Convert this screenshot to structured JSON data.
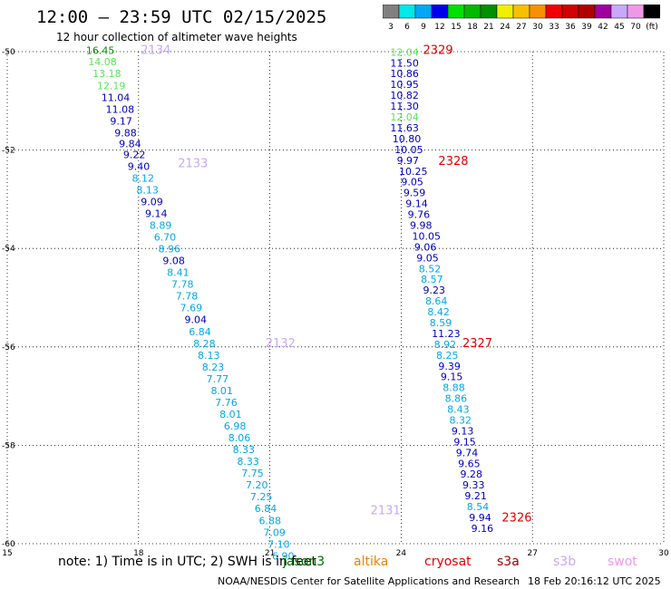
{
  "title": "12:00 — 23:59 UTC 02/15/2025",
  "subtitle": "12 hour collection of altimeter wave heights",
  "colorbar": {
    "colors": [
      "#808080",
      "#00e8e8",
      "#00a8f8",
      "#0000f0",
      "#00e000",
      "#00b800",
      "#009000",
      "#f0f000",
      "#f8c000",
      "#f89000",
      "#f00000",
      "#d00000",
      "#b00000",
      "#a000a0",
      "#c8a8f8",
      "#f098e8",
      "#000000"
    ],
    "labels": [
      "3",
      "6",
      "9",
      "12",
      "15",
      "18",
      "21",
      "24",
      "27",
      "30",
      "33",
      "36",
      "39",
      "42",
      "45",
      "70",
      "(ft)"
    ]
  },
  "note": "note:  1) Time is in UTC;  2) SWH is in feet",
  "satellites": [
    {
      "name": "jason3",
      "color": "#007000"
    },
    {
      "name": "altika",
      "color": "#f08000"
    },
    {
      "name": "cryosat",
      "color": "#e00000"
    },
    {
      "name": "s3a",
      "color": "#a00000"
    },
    {
      "name": "s3b",
      "color": "#c8a8f8"
    },
    {
      "name": "swot",
      "color": "#f098e8"
    }
  ],
  "footer": "NOAA/NESDIS Center for Satellite Applications and Research",
  "footer_time": "18 Feb 20:16:12 UTC 2025",
  "chart_data": {
    "type": "scatter",
    "xlim": [
      15,
      30
    ],
    "ylim": [
      -60,
      -50
    ],
    "xticks": [
      15,
      18,
      21,
      24,
      27,
      30
    ],
    "yticks": [
      -50,
      -52,
      -54,
      -56,
      -58,
      -60
    ],
    "grid": true,
    "tracks": [
      {
        "labels": [
          {
            "text": "2134",
            "x": 18.05,
            "y": -50.05,
            "color": "#c8a8f8"
          },
          {
            "text": "2133",
            "x": 18.9,
            "y": -52.35,
            "color": "#c8a8f8"
          },
          {
            "text": "2132",
            "x": 20.9,
            "y": -56.0,
            "color": "#c8a8f8"
          },
          {
            "text": "2131",
            "x": 23.3,
            "y": -59.4,
            "color": "#c8a8f8"
          }
        ],
        "points": [
          {
            "x": 16.8,
            "y": -50.05,
            "v": "16.45",
            "c": "#009000"
          },
          {
            "x": 16.85,
            "y": -50.28,
            "v": "14.08",
            "c": "#60e060"
          },
          {
            "x": 16.95,
            "y": -50.52,
            "v": "13.18",
            "c": "#60e060"
          },
          {
            "x": 17.05,
            "y": -50.76,
            "v": "12.19",
            "c": "#60e060"
          },
          {
            "x": 17.15,
            "y": -51.0,
            "v": "11.04",
            "c": "#0000c0"
          },
          {
            "x": 17.25,
            "y": -51.24,
            "v": "11.08",
            "c": "#0000c0"
          },
          {
            "x": 17.35,
            "y": -51.48,
            "v": "9.17",
            "c": "#0000c0"
          },
          {
            "x": 17.45,
            "y": -51.72,
            "v": "9.88",
            "c": "#0000c0"
          },
          {
            "x": 17.55,
            "y": -51.94,
            "v": "9.84",
            "c": "#0000c0"
          },
          {
            "x": 17.65,
            "y": -52.16,
            "v": "9.22",
            "c": "#0000c0"
          },
          {
            "x": 17.75,
            "y": -52.4,
            "v": "9.40",
            "c": "#0000c0"
          },
          {
            "x": 17.85,
            "y": -52.64,
            "v": "8.12",
            "c": "#00a8e8"
          },
          {
            "x": 17.95,
            "y": -52.88,
            "v": "8.13",
            "c": "#00a8e8"
          },
          {
            "x": 18.05,
            "y": -53.12,
            "v": "9.09",
            "c": "#0000c0"
          },
          {
            "x": 18.15,
            "y": -53.36,
            "v": "9.14",
            "c": "#0000c0"
          },
          {
            "x": 18.25,
            "y": -53.6,
            "v": "8.89",
            "c": "#00a8e8"
          },
          {
            "x": 18.35,
            "y": -53.84,
            "v": "6.70",
            "c": "#00a8e8"
          },
          {
            "x": 18.45,
            "y": -54.08,
            "v": "8.96",
            "c": "#00a8e8"
          },
          {
            "x": 18.55,
            "y": -54.32,
            "v": "9.08",
            "c": "#0000c0"
          },
          {
            "x": 18.65,
            "y": -54.56,
            "v": "8.41",
            "c": "#00a8e8"
          },
          {
            "x": 18.75,
            "y": -54.8,
            "v": "7.78",
            "c": "#00a8e8"
          },
          {
            "x": 18.85,
            "y": -55.04,
            "v": "7.78",
            "c": "#00a8e8"
          },
          {
            "x": 18.95,
            "y": -55.28,
            "v": "7.69",
            "c": "#00a8e8"
          },
          {
            "x": 19.05,
            "y": -55.52,
            "v": "9.04",
            "c": "#0000c0"
          },
          {
            "x": 19.15,
            "y": -55.76,
            "v": "6.84",
            "c": "#00a8e8"
          },
          {
            "x": 19.25,
            "y": -56.0,
            "v": "8.28",
            "c": "#00a8e8"
          },
          {
            "x": 19.35,
            "y": -56.24,
            "v": "8.13",
            "c": "#00a8e8"
          },
          {
            "x": 19.45,
            "y": -56.48,
            "v": "8.23",
            "c": "#00a8e8"
          },
          {
            "x": 19.55,
            "y": -56.72,
            "v": "7.77",
            "c": "#00a8e8"
          },
          {
            "x": 19.65,
            "y": -56.96,
            "v": "8.01",
            "c": "#00a8e8"
          },
          {
            "x": 19.75,
            "y": -57.2,
            "v": "7.76",
            "c": "#00a8e8"
          },
          {
            "x": 19.85,
            "y": -57.44,
            "v": "8.01",
            "c": "#00a8e8"
          },
          {
            "x": 19.95,
            "y": -57.68,
            "v": "6.98",
            "c": "#00a8e8"
          },
          {
            "x": 20.05,
            "y": -57.92,
            "v": "8.06",
            "c": "#00a8e8"
          },
          {
            "x": 20.15,
            "y": -58.16,
            "v": "8.33",
            "c": "#00a8e8"
          },
          {
            "x": 20.25,
            "y": -58.4,
            "v": "8.33",
            "c": "#00a8e8"
          },
          {
            "x": 20.35,
            "y": -58.64,
            "v": "7.75",
            "c": "#00a8e8"
          },
          {
            "x": 20.45,
            "y": -58.88,
            "v": "7.20",
            "c": "#00a8e8"
          },
          {
            "x": 20.55,
            "y": -59.12,
            "v": "7.25",
            "c": "#00a8e8"
          },
          {
            "x": 20.65,
            "y": -59.36,
            "v": "6.84",
            "c": "#00a8e8"
          },
          {
            "x": 20.75,
            "y": -59.6,
            "v": "6.88",
            "c": "#00a8e8"
          },
          {
            "x": 20.85,
            "y": -59.84,
            "v": "7.09",
            "c": "#00a8e8"
          },
          {
            "x": 20.95,
            "y": -60.08,
            "v": "7.10",
            "c": "#00a8e8"
          },
          {
            "x": 21.05,
            "y": -60.32,
            "v": "6.90",
            "c": "#00a8e8"
          }
        ]
      },
      {
        "labels": [
          {
            "text": "2329",
            "x": 24.5,
            "y": -50.05,
            "color": "#e00000"
          },
          {
            "text": "2328",
            "x": 24.85,
            "y": -52.3,
            "color": "#e00000"
          },
          {
            "text": "2327",
            "x": 25.4,
            "y": -56.0,
            "color": "#e00000"
          },
          {
            "text": "2326",
            "x": 26.3,
            "y": -59.55,
            "color": "#e00000"
          }
        ],
        "points": [
          {
            "x": 23.75,
            "y": -50.08,
            "v": "12.04",
            "c": "#60e060"
          },
          {
            "x": 23.75,
            "y": -50.3,
            "v": "11.50",
            "c": "#0000c0"
          },
          {
            "x": 23.75,
            "y": -50.52,
            "v": "10.86",
            "c": "#0000c0"
          },
          {
            "x": 23.75,
            "y": -50.74,
            "v": "10.95",
            "c": "#0000c0"
          },
          {
            "x": 23.75,
            "y": -50.96,
            "v": "10.82",
            "c": "#0000c0"
          },
          {
            "x": 23.75,
            "y": -51.18,
            "v": "11.30",
            "c": "#0000c0"
          },
          {
            "x": 23.75,
            "y": -51.4,
            "v": "12.04",
            "c": "#60e060"
          },
          {
            "x": 23.75,
            "y": -51.62,
            "v": "11.63",
            "c": "#0000c0"
          },
          {
            "x": 23.8,
            "y": -51.84,
            "v": "10.80",
            "c": "#0000c0"
          },
          {
            "x": 23.85,
            "y": -52.06,
            "v": "10.05",
            "c": "#0000c0"
          },
          {
            "x": 23.9,
            "y": -52.28,
            "v": "9.97",
            "c": "#0000c0"
          },
          {
            "x": 23.95,
            "y": -52.5,
            "v": "10.25",
            "c": "#0000c0"
          },
          {
            "x": 24.0,
            "y": -52.72,
            "v": "9.05",
            "c": "#0000c0"
          },
          {
            "x": 24.05,
            "y": -52.94,
            "v": "9.59",
            "c": "#0000c0"
          },
          {
            "x": 24.1,
            "y": -53.16,
            "v": "9.14",
            "c": "#0000c0"
          },
          {
            "x": 24.15,
            "y": -53.38,
            "v": "9.76",
            "c": "#0000c0"
          },
          {
            "x": 24.2,
            "y": -53.6,
            "v": "9.98",
            "c": "#0000c0"
          },
          {
            "x": 24.25,
            "y": -53.82,
            "v": "10.05",
            "c": "#0000c0"
          },
          {
            "x": 24.3,
            "y": -54.04,
            "v": "9.06",
            "c": "#0000c0"
          },
          {
            "x": 24.35,
            "y": -54.26,
            "v": "9.05",
            "c": "#0000c0"
          },
          {
            "x": 24.4,
            "y": -54.48,
            "v": "8.52",
            "c": "#00a8e8"
          },
          {
            "x": 24.45,
            "y": -54.7,
            "v": "8.57",
            "c": "#00a8e8"
          },
          {
            "x": 24.5,
            "y": -54.92,
            "v": "9.23",
            "c": "#0000c0"
          },
          {
            "x": 24.55,
            "y": -55.14,
            "v": "8.64",
            "c": "#00a8e8"
          },
          {
            "x": 24.6,
            "y": -55.36,
            "v": "8.42",
            "c": "#00a8e8"
          },
          {
            "x": 24.65,
            "y": -55.58,
            "v": "8.59",
            "c": "#00a8e8"
          },
          {
            "x": 24.7,
            "y": -55.8,
            "v": "11.23",
            "c": "#0000c0"
          },
          {
            "x": 24.75,
            "y": -56.02,
            "v": "8.92",
            "c": "#00a8e8"
          },
          {
            "x": 24.8,
            "y": -56.24,
            "v": "8.25",
            "c": "#00a8e8"
          },
          {
            "x": 24.85,
            "y": -56.46,
            "v": "9.39",
            "c": "#0000c0"
          },
          {
            "x": 24.9,
            "y": -56.68,
            "v": "9.15",
            "c": "#0000c0"
          },
          {
            "x": 24.95,
            "y": -56.9,
            "v": "8.88",
            "c": "#00a8e8"
          },
          {
            "x": 25.0,
            "y": -57.12,
            "v": "8.86",
            "c": "#00a8e8"
          },
          {
            "x": 25.05,
            "y": -57.34,
            "v": "8.43",
            "c": "#00a8e8"
          },
          {
            "x": 25.1,
            "y": -57.56,
            "v": "8.32",
            "c": "#00a8e8"
          },
          {
            "x": 25.15,
            "y": -57.78,
            "v": "9.13",
            "c": "#0000c0"
          },
          {
            "x": 25.2,
            "y": -58.0,
            "v": "9.15",
            "c": "#0000c0"
          },
          {
            "x": 25.25,
            "y": -58.22,
            "v": "9.74",
            "c": "#0000c0"
          },
          {
            "x": 25.3,
            "y": -58.44,
            "v": "9.65",
            "c": "#0000c0"
          },
          {
            "x": 25.35,
            "y": -58.66,
            "v": "9.28",
            "c": "#0000c0"
          },
          {
            "x": 25.4,
            "y": -58.88,
            "v": "9.33",
            "c": "#0000c0"
          },
          {
            "x": 25.45,
            "y": -59.1,
            "v": "9.21",
            "c": "#0000c0"
          },
          {
            "x": 25.5,
            "y": -59.32,
            "v": "8.54",
            "c": "#00a8e8"
          },
          {
            "x": 25.55,
            "y": -59.54,
            "v": "9.94",
            "c": "#0000c0"
          },
          {
            "x": 25.6,
            "y": -59.76,
            "v": "9.16",
            "c": "#0000c0"
          }
        ]
      }
    ]
  }
}
